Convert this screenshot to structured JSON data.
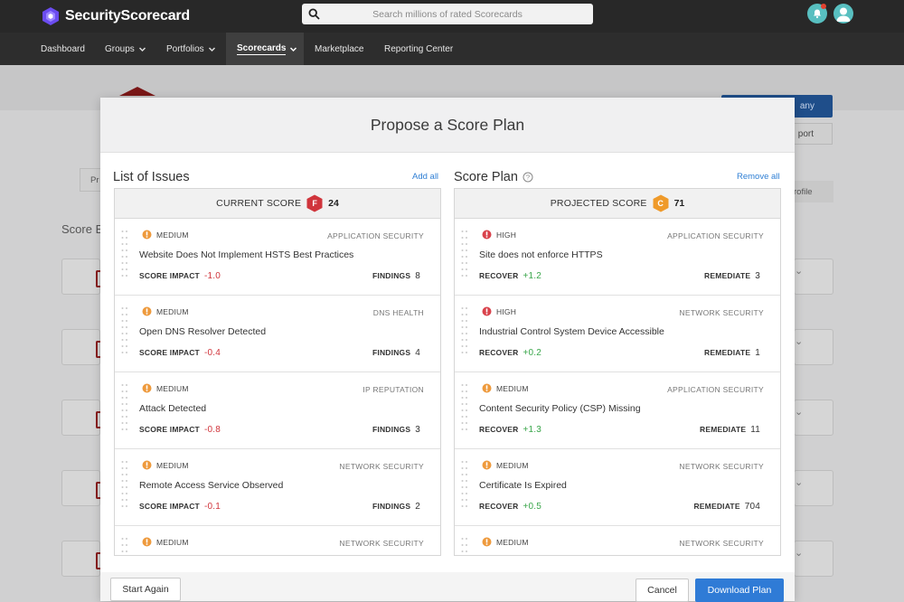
{
  "app": {
    "brand": "SecurityScorecard",
    "search_placeholder": "Search millions of rated Scorecards"
  },
  "nav": {
    "items": [
      {
        "label": "Dashboard"
      },
      {
        "label": "Groups"
      },
      {
        "label": "Portfolios"
      },
      {
        "label": "Scorecards"
      },
      {
        "label": "Marketplace"
      },
      {
        "label": "Reporting Center"
      }
    ],
    "active": "Scorecards"
  },
  "background": {
    "score_title": "Score E",
    "pr_button": "Pr",
    "blue_button": "any",
    "report_button": "port",
    "profile_tab": "rofile"
  },
  "modal": {
    "title": "Propose a Score Plan",
    "left": {
      "title": "List of Issues",
      "link": "Add all",
      "score_label": "CURRENT SCORE",
      "grade": "F",
      "grade_color": "#d0353c",
      "score": "24",
      "issues": [
        {
          "severity": "MEDIUM",
          "category": "APPLICATION SECURITY",
          "title": "Website Does Not Implement HSTS Best Practices",
          "metric": "SCORE IMPACT",
          "value": "-1.0",
          "count_label": "FINDINGS",
          "count": "8"
        },
        {
          "severity": "MEDIUM",
          "category": "DNS HEALTH",
          "title": "Open DNS Resolver Detected",
          "metric": "SCORE IMPACT",
          "value": "-0.4",
          "count_label": "FINDINGS",
          "count": "4"
        },
        {
          "severity": "MEDIUM",
          "category": "IP REPUTATION",
          "title": "Attack Detected",
          "metric": "SCORE IMPACT",
          "value": "-0.8",
          "count_label": "FINDINGS",
          "count": "3"
        },
        {
          "severity": "MEDIUM",
          "category": "NETWORK SECURITY",
          "title": "Remote Access Service Observed",
          "metric": "SCORE IMPACT",
          "value": "-0.1",
          "count_label": "FINDINGS",
          "count": "2"
        },
        {
          "severity": "MEDIUM",
          "category": "NETWORK SECURITY",
          "title": "",
          "metric": "",
          "value": "",
          "count_label": "",
          "count": ""
        }
      ]
    },
    "right": {
      "title": "Score Plan",
      "link": "Remove all",
      "score_label": "PROJECTED SCORE",
      "grade": "C",
      "grade_color": "#ef9a2a",
      "score": "71",
      "issues": [
        {
          "severity": "HIGH",
          "category": "APPLICATION SECURITY",
          "title": "Site does not enforce HTTPS",
          "metric": "RECOVER",
          "value": "+1.2",
          "count_label": "REMEDIATE",
          "count": "3"
        },
        {
          "severity": "HIGH",
          "category": "NETWORK SECURITY",
          "title": "Industrial Control System Device Accessible",
          "metric": "RECOVER",
          "value": "+0.2",
          "count_label": "REMEDIATE",
          "count": "1"
        },
        {
          "severity": "MEDIUM",
          "category": "APPLICATION SECURITY",
          "title": "Content Security Policy (CSP) Missing",
          "metric": "RECOVER",
          "value": "+1.3",
          "count_label": "REMEDIATE",
          "count": "11"
        },
        {
          "severity": "MEDIUM",
          "category": "NETWORK SECURITY",
          "title": "Certificate Is Expired",
          "metric": "RECOVER",
          "value": "+0.5",
          "count_label": "REMEDIATE",
          "count": "704"
        },
        {
          "severity": "MEDIUM",
          "category": "NETWORK SECURITY",
          "title": "",
          "metric": "",
          "value": "",
          "count_label": "",
          "count": ""
        }
      ]
    },
    "footer": {
      "start_again": "Start Again",
      "cancel": "Cancel",
      "download": "Download Plan"
    }
  },
  "colors": {
    "medium": "#ee9a3d",
    "high": "#d9434c",
    "primary": "#2f7bd6"
  }
}
